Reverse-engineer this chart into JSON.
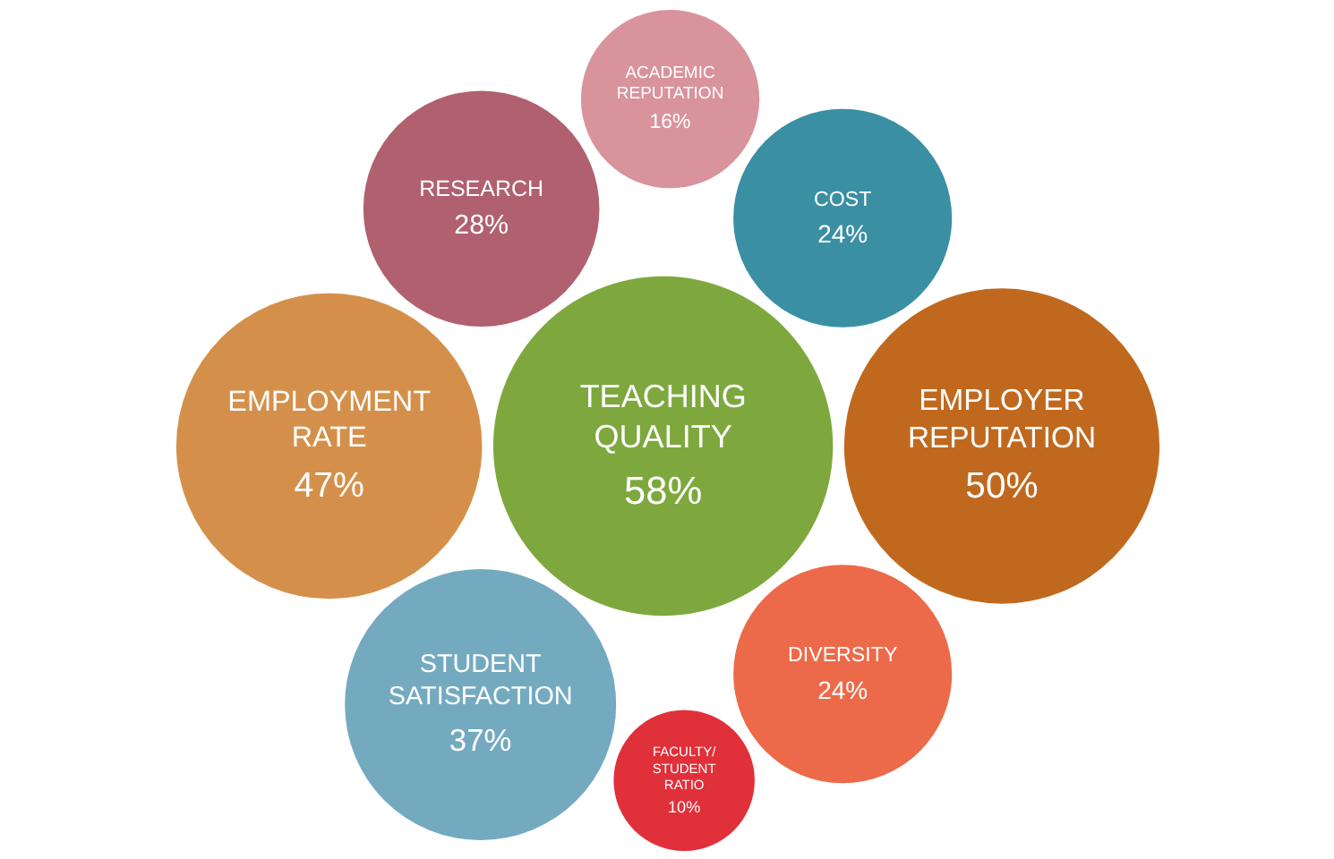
{
  "chart_data": {
    "type": "other",
    "categories": [
      "COST",
      "EMPLOYER\nREPUTATION",
      "RESEARCH",
      "ACADEMIC\nREPUTATION",
      "DIVERSITY",
      "EMPLOYMENT\nRATE",
      "FACULTY/\nSTUDENT\nRATIO",
      "TEACHING\nQUALITY",
      "STUDENT\nSATISFACTION"
    ],
    "values": [
      24,
      50,
      28,
      16,
      24,
      47,
      10,
      58,
      37
    ],
    "value_labels": [
      "24%",
      "50%",
      "28%",
      "16%",
      "24%",
      "47%",
      "10%",
      "58%",
      "37%"
    ],
    "colors": [
      "#3a8fa3",
      "#c0691e",
      "#b0606e",
      "#d9939c",
      "#ec6a4a",
      "#d4904a",
      "#e0303a",
      "#7ea83e",
      "#74aabf"
    ]
  }
}
